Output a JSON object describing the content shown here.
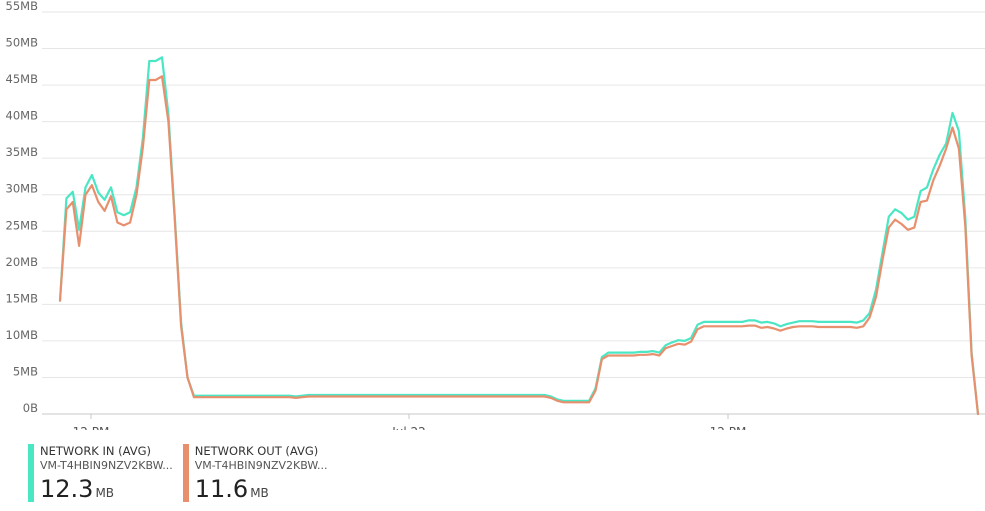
{
  "chart_data": {
    "type": "line",
    "ylim": [
      0,
      55
    ],
    "y_ticks": [
      "0B",
      "5MB",
      "10MB",
      "15MB",
      "20MB",
      "25MB",
      "30MB",
      "35MB",
      "40MB",
      "45MB",
      "50MB",
      "55MB"
    ],
    "x_ticks": [
      "12 PM",
      "Jul 22",
      "12 PM"
    ],
    "grid": true,
    "series": [
      {
        "name": "NETWORK IN (AVG)",
        "resource": "VM-T4HBIN9NZV2KBW...",
        "summary_value": "12.3",
        "summary_unit": "MB",
        "color": "#4BE6C4",
        "values": [
          15.5,
          29.5,
          30.4,
          25.2,
          31.0,
          32.7,
          30.3,
          29.3,
          31.0,
          27.6,
          27.2,
          27.6,
          31.0,
          37.8,
          48.3,
          48.3,
          48.8,
          41.0,
          27.0,
          12.5,
          5.0,
          2.5,
          2.5,
          2.5,
          2.5,
          2.5,
          2.5,
          2.5,
          2.5,
          2.5,
          2.5,
          2.5,
          2.5,
          2.5,
          2.5,
          2.5,
          2.5,
          2.4,
          2.5,
          2.6,
          2.6,
          2.6,
          2.6,
          2.6,
          2.6,
          2.6,
          2.6,
          2.6,
          2.6,
          2.6,
          2.6,
          2.6,
          2.6,
          2.6,
          2.6,
          2.6,
          2.6,
          2.6,
          2.6,
          2.6,
          2.6,
          2.6,
          2.6,
          2.6,
          2.6,
          2.6,
          2.6,
          2.6,
          2.6,
          2.6,
          2.6,
          2.6,
          2.6,
          2.6,
          2.6,
          2.6,
          2.6,
          2.4,
          2.0,
          1.8,
          1.8,
          1.8,
          1.8,
          1.8,
          3.5,
          7.8,
          8.4,
          8.4,
          8.4,
          8.4,
          8.4,
          8.5,
          8.5,
          8.6,
          8.4,
          9.4,
          9.8,
          10.1,
          10.0,
          10.4,
          12.2,
          12.6,
          12.6,
          12.6,
          12.6,
          12.6,
          12.6,
          12.6,
          12.8,
          12.8,
          12.5,
          12.6,
          12.4,
          12.0,
          12.3,
          12.5,
          12.7,
          12.7,
          12.7,
          12.6,
          12.6,
          12.6,
          12.6,
          12.6,
          12.6,
          12.5,
          12.8,
          13.8,
          17.0,
          22.0,
          27.0,
          28.0,
          27.5,
          26.6,
          27.0,
          30.5,
          31.0,
          33.5,
          35.5,
          37.0,
          41.2,
          38.7,
          26.8,
          8.4,
          0.0
        ]
      },
      {
        "name": "NETWORK OUT (AVG)",
        "resource": "VM-T4HBIN9NZV2KBW...",
        "summary_value": "11.6",
        "summary_unit": "MB",
        "color": "#E8906E",
        "values": [
          15.5,
          28.0,
          29.0,
          23.0,
          30.0,
          31.3,
          29.0,
          27.8,
          29.8,
          26.2,
          25.8,
          26.2,
          30.0,
          36.5,
          45.7,
          45.7,
          46.2,
          40.0,
          26.5,
          12.0,
          5.0,
          2.3,
          2.3,
          2.3,
          2.3,
          2.3,
          2.3,
          2.3,
          2.3,
          2.3,
          2.3,
          2.3,
          2.3,
          2.3,
          2.3,
          2.3,
          2.3,
          2.2,
          2.3,
          2.4,
          2.4,
          2.4,
          2.4,
          2.4,
          2.4,
          2.4,
          2.4,
          2.4,
          2.4,
          2.4,
          2.4,
          2.4,
          2.4,
          2.4,
          2.4,
          2.4,
          2.4,
          2.4,
          2.4,
          2.4,
          2.4,
          2.4,
          2.4,
          2.4,
          2.4,
          2.4,
          2.4,
          2.4,
          2.4,
          2.4,
          2.4,
          2.4,
          2.4,
          2.4,
          2.4,
          2.4,
          2.4,
          2.2,
          1.8,
          1.6,
          1.6,
          1.6,
          1.6,
          1.6,
          3.2,
          7.5,
          8.0,
          8.0,
          8.0,
          8.0,
          8.0,
          8.1,
          8.1,
          8.2,
          8.0,
          9.0,
          9.3,
          9.6,
          9.5,
          9.9,
          11.6,
          12.0,
          12.0,
          12.0,
          12.0,
          12.0,
          12.0,
          12.0,
          12.1,
          12.1,
          11.8,
          11.9,
          11.7,
          11.4,
          11.7,
          11.9,
          12.0,
          12.0,
          12.0,
          11.9,
          11.9,
          11.9,
          11.9,
          11.9,
          11.9,
          11.8,
          12.0,
          13.2,
          16.0,
          21.0,
          25.5,
          26.6,
          26.0,
          25.2,
          25.5,
          29.0,
          29.2,
          32.0,
          34.0,
          36.3,
          39.2,
          36.3,
          25.7,
          8.0,
          0.0
        ]
      }
    ]
  }
}
